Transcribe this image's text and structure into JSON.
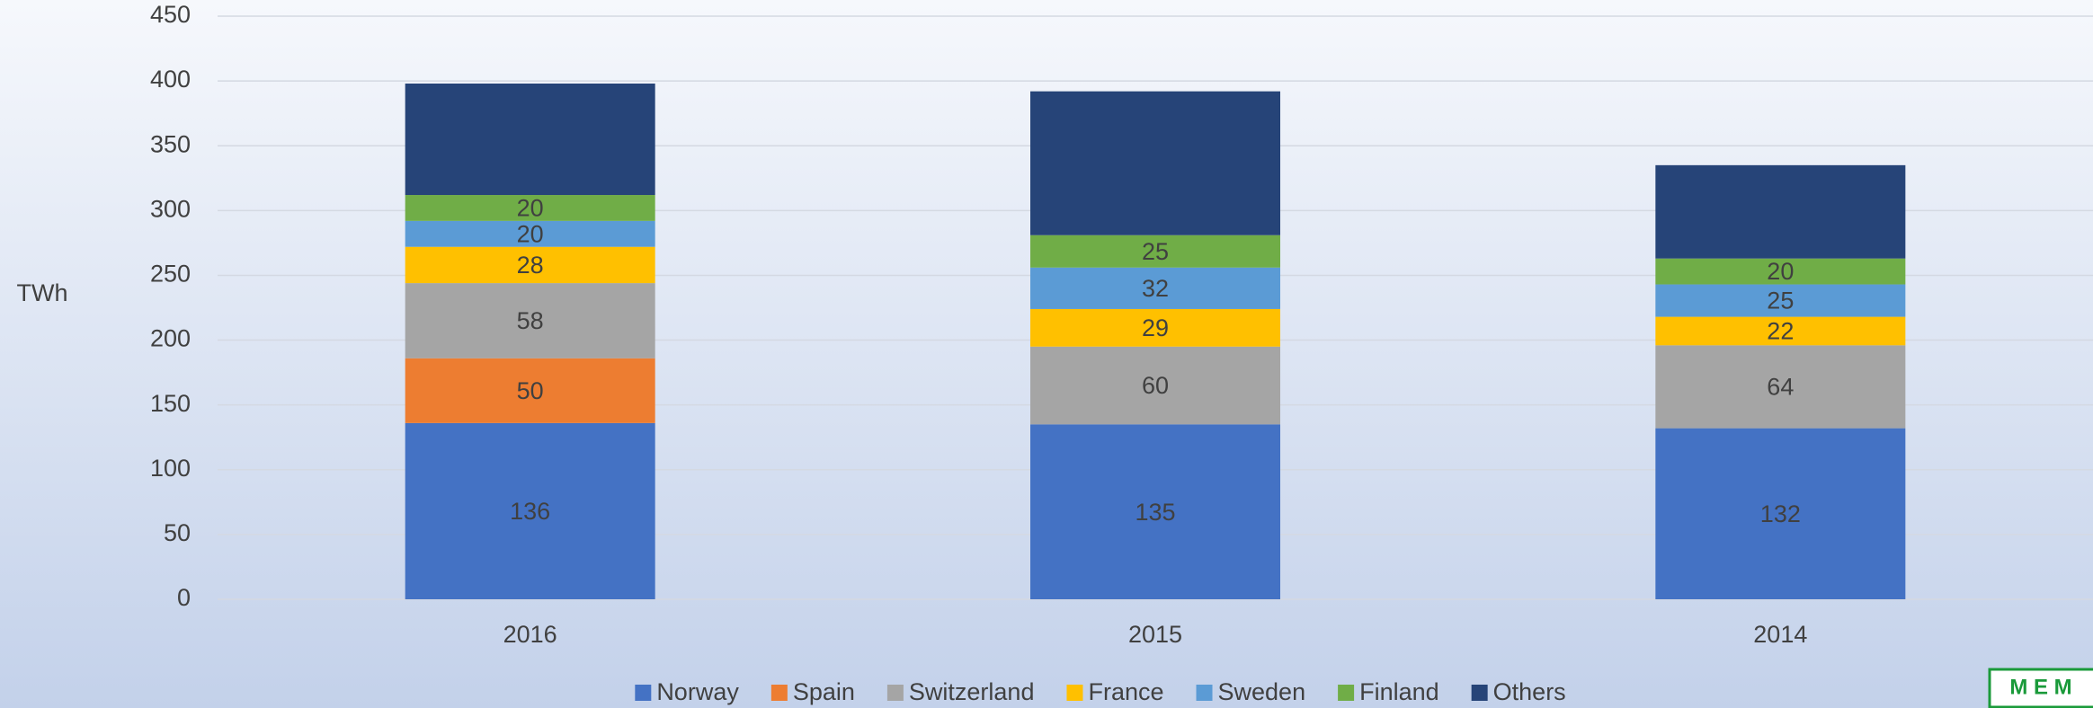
{
  "chart_data": {
    "type": "stacked_bar",
    "y_label": "TWh",
    "categories": [
      "2016",
      "2015",
      "2014"
    ],
    "series": [
      {
        "name": "Norway",
        "color": "#4472c4",
        "values": [
          136,
          135,
          132
        ]
      },
      {
        "name": "Spain",
        "color": "#ed7d31",
        "values": [
          50,
          null,
          null
        ]
      },
      {
        "name": "Switzerland",
        "color": "#a5a5a5",
        "values": [
          58,
          60,
          64
        ]
      },
      {
        "name": "France",
        "color": "#ffc000",
        "values": [
          28,
          29,
          22
        ]
      },
      {
        "name": "Sweden",
        "color": "#5b9bd5",
        "values": [
          20,
          32,
          25
        ]
      },
      {
        "name": "Finland",
        "color": "#70ad47",
        "values": [
          20,
          25,
          20
        ]
      },
      {
        "name": "Others",
        "color": "#264478",
        "values": [
          86,
          111,
          72
        ],
        "data_labels": false
      }
    ],
    "ylim": [
      0,
      450
    ],
    "yticks": [
      0,
      50,
      100,
      150,
      200,
      250,
      300,
      350,
      400,
      450
    ],
    "grid": true,
    "legend": "bottom",
    "logo": "M E M"
  }
}
